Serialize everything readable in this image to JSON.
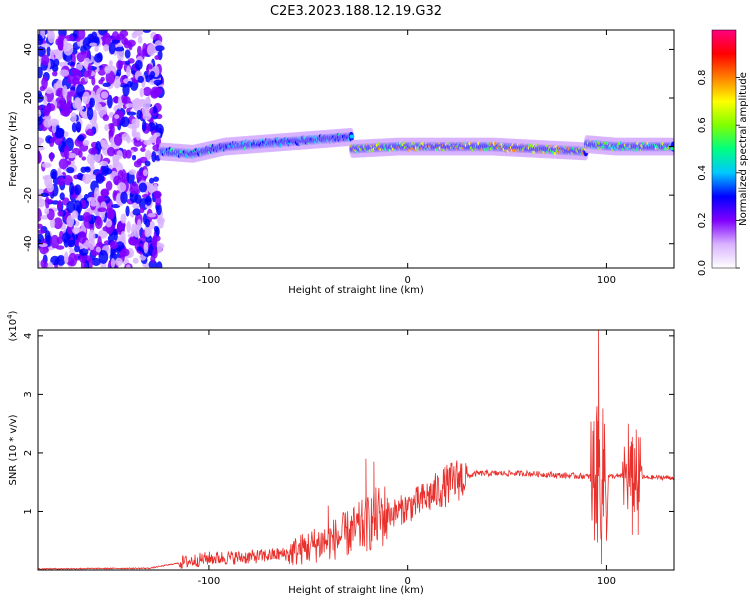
{
  "title": "C2E3.2023.188.12.19.G32",
  "chart_data": [
    {
      "type": "heatmap",
      "name": "spectrogram",
      "xlabel": "Height of straight line (km)",
      "ylabel": "Frequency (Hz)",
      "xlim": [
        -186,
        134
      ],
      "ylim": [
        -50,
        48
      ],
      "x_ticks": [
        -100,
        0,
        100
      ],
      "y_ticks": [
        -40,
        -20,
        0,
        20,
        40
      ],
      "colorbar": {
        "label": "Normalized spectral amplitude",
        "range": [
          0,
          1
        ],
        "ticks": [
          "0.0",
          "0.2",
          "0.4",
          "0.6",
          "0.8"
        ],
        "colormap": [
          "#ffffff",
          "#d9b3ff",
          "#8000ff",
          "#0000ff",
          "#00c8ff",
          "#00ff80",
          "#80ff00",
          "#ffff00",
          "#ff8000",
          "#ff0000",
          "#ff0080"
        ]
      },
      "noise_region_end": -124,
      "band_segments": [
        {
          "x_start": -124,
          "x_end": -28,
          "center_hz": [
            -2,
            -3,
            0,
            1,
            2,
            3,
            4
          ],
          "amplitude": 0.45
        },
        {
          "x_start": -28,
          "x_end": 90,
          "center_hz": [
            -1,
            0,
            0,
            0,
            -1,
            -2
          ],
          "amplitude": 0.8
        },
        {
          "x_start": 90,
          "x_end": 134,
          "center_hz": [
            1,
            0,
            0,
            0
          ],
          "amplitude": 0.7
        }
      ]
    },
    {
      "type": "line",
      "name": "snr",
      "xlabel": "Height of straight line (km)",
      "ylabel": "SNR (10 * v/v)",
      "y_multiplier": "(x10",
      "y_multiplier_exp": "4",
      "y_multiplier_close": ")",
      "xlim": [
        -186,
        134
      ],
      "ylim": [
        0,
        4.1
      ],
      "x_ticks": [
        -100,
        0,
        100
      ],
      "y_ticks": [
        1,
        2,
        3,
        4
      ],
      "color": "#e8302c",
      "envelope": {
        "x": [
          -186,
          -130,
          -115,
          -100,
          -80,
          -60,
          -45,
          -35,
          -25,
          -15,
          -5,
          5,
          15,
          25,
          35,
          45,
          60,
          75,
          90,
          94,
          97,
          100,
          105,
          110,
          115,
          120,
          134
        ],
        "y": [
          0.02,
          0.03,
          0.12,
          0.2,
          0.22,
          0.28,
          0.45,
          0.55,
          0.7,
          0.9,
          1.0,
          1.15,
          1.35,
          1.55,
          1.65,
          1.65,
          1.65,
          1.62,
          1.6,
          1.6,
          1.6,
          1.6,
          1.6,
          1.6,
          1.6,
          1.58,
          1.58
        ]
      },
      "peaks": [
        {
          "x": -21,
          "y": 1.9
        },
        {
          "x": -17,
          "y": 1.85
        },
        {
          "x": -40,
          "y": 1.1
        },
        {
          "x": 95,
          "y": 2.6
        },
        {
          "x": 96,
          "y": 4.1
        },
        {
          "x": 97.5,
          "y": 0.1
        },
        {
          "x": 99,
          "y": 2.5
        },
        {
          "x": 100,
          "y": 0.5
        },
        {
          "x": 111,
          "y": 2.5
        },
        {
          "x": 113,
          "y": 0.6
        },
        {
          "x": 115,
          "y": 2.4
        },
        {
          "x": 116,
          "y": 0.6
        }
      ]
    }
  ]
}
